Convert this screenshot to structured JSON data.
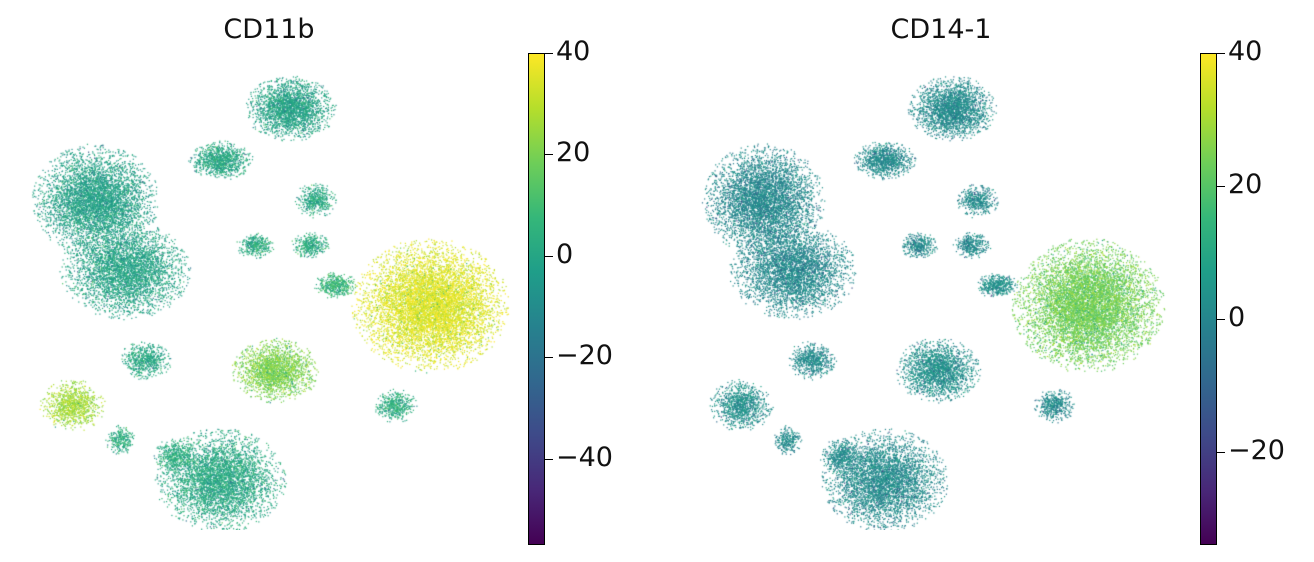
{
  "chart_data": [
    {
      "type": "scatter",
      "title": "CD11b",
      "colormap": "viridis",
      "colorbar": {
        "min": -57,
        "max": 40,
        "ticks": [
          40,
          20,
          0,
          -20,
          -40
        ],
        "tick_labels": [
          "40",
          "20",
          "0",
          "−20",
          "−40"
        ]
      },
      "high_expression_clusters": [
        "right-large-cluster",
        "lower-left-cluster",
        "center-lower-cluster"
      ]
    },
    {
      "type": "scatter",
      "title": "CD14-1",
      "colormap": "viridis",
      "colorbar": {
        "min": -34,
        "max": 40,
        "ticks": [
          40,
          20,
          0,
          -20
        ],
        "tick_labels": [
          "40",
          "20",
          "0",
          "−20"
        ]
      },
      "high_expression_clusters": [
        "right-large-cluster"
      ]
    }
  ],
  "colors": {
    "viridis": [
      "#440154",
      "#482878",
      "#3e4a89",
      "#31688e",
      "#26828e",
      "#1f9e89",
      "#35b779",
      "#6ece58",
      "#b5de2b",
      "#fde725"
    ]
  }
}
